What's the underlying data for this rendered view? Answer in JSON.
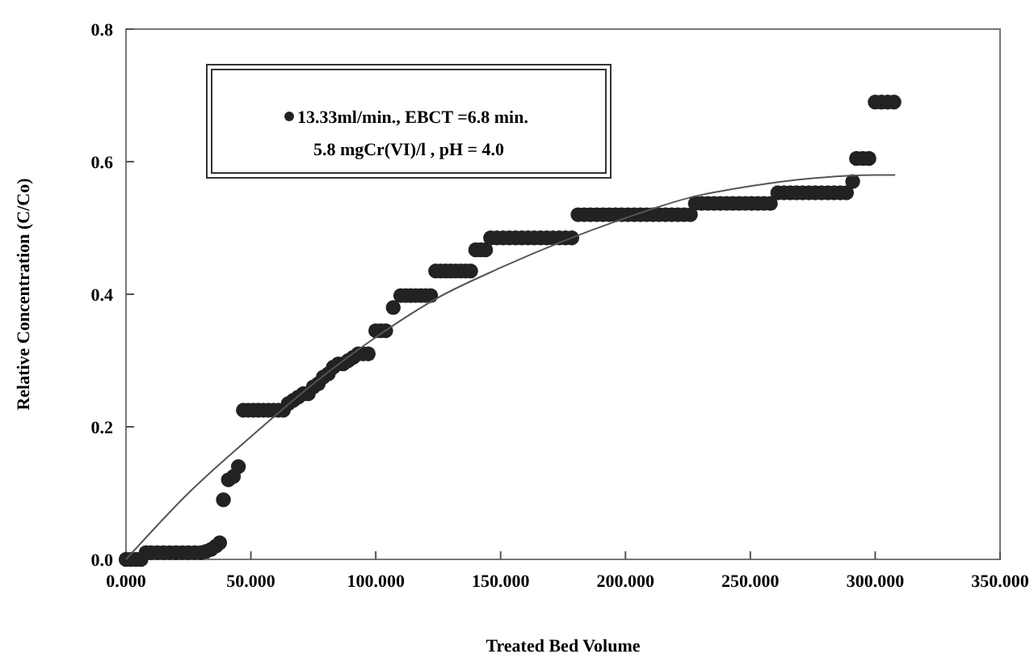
{
  "chart_data": {
    "type": "scatter",
    "xlabel": "Treated Bed Volume",
    "ylabel": "Relative Concentration (C/Co)",
    "xlim": [
      0,
      350
    ],
    "xticks": [
      {
        "value": 0,
        "label": "0.000"
      },
      {
        "value": 50,
        "label": "50.000"
      },
      {
        "value": 100,
        "label": "100.000"
      },
      {
        "value": 150,
        "label": "150.000"
      },
      {
        "value": 200,
        "label": "200.000"
      },
      {
        "value": 250,
        "label": "250.000"
      },
      {
        "value": 300,
        "label": "300.000"
      },
      {
        "value": 350,
        "label": "350.000"
      }
    ],
    "ylim": [
      0,
      0.8
    ],
    "yticks": [
      {
        "value": 0,
        "label": "0.0"
      },
      {
        "value": 0.2,
        "label": "0.2"
      },
      {
        "value": 0.4,
        "label": "0.4"
      },
      {
        "value": 0.6,
        "label": "0.6"
      },
      {
        "value": 0.8,
        "label": "0.8"
      }
    ],
    "grid": false,
    "legend": "top left",
    "marker": "circle",
    "annotations": [
      "5.8 mgCr(VI)/l , pH = 4.0"
    ],
    "series": [
      {
        "name": "13.33ml/min., EBCT =6.8 min.",
        "color": "#222222",
        "x": [
          0,
          2,
          4,
          6,
          8,
          10,
          12.5,
          15,
          17.5,
          20,
          22.5,
          25,
          27.5,
          30,
          32,
          34,
          36,
          37.5,
          39,
          41,
          43,
          45,
          47,
          49,
          51,
          53,
          55,
          57,
          59,
          61,
          63,
          65,
          67,
          69,
          71,
          73,
          75,
          77,
          79,
          81,
          83,
          85,
          87,
          89,
          91,
          93,
          95,
          97,
          100,
          102,
          104,
          107,
          110,
          112,
          114,
          116,
          118,
          120,
          122,
          124,
          126,
          128,
          130,
          132,
          134,
          136,
          138,
          140,
          142,
          144,
          146,
          148.5,
          151,
          153.5,
          156,
          158.5,
          161,
          163.5,
          166,
          168.5,
          171,
          173.5,
          176,
          178.5,
          181,
          183.5,
          186,
          188.5,
          191,
          193.5,
          196,
          198.5,
          201,
          203.5,
          206,
          208.5,
          211,
          213.5,
          216,
          218.5,
          221,
          223.5,
          226,
          228,
          230.5,
          233,
          235.5,
          238,
          240.5,
          243,
          245.5,
          248,
          250.5,
          253,
          255.5,
          258,
          261,
          263.5,
          266,
          268.5,
          271,
          273.5,
          276,
          278.5,
          281,
          283.5,
          286,
          288.5,
          291,
          292.5,
          295,
          297.5,
          300,
          302.5,
          305,
          307.5
        ],
        "values": [
          0,
          0,
          0,
          0,
          0.01,
          0.01,
          0.01,
          0.01,
          0.01,
          0.01,
          0.01,
          0.01,
          0.01,
          0.01,
          0.012,
          0.015,
          0.02,
          0.025,
          0.09,
          0.12,
          0.125,
          0.14,
          0.225,
          0.225,
          0.225,
          0.225,
          0.225,
          0.225,
          0.225,
          0.225,
          0.225,
          0.235,
          0.24,
          0.245,
          0.25,
          0.25,
          0.26,
          0.265,
          0.275,
          0.28,
          0.29,
          0.295,
          0.295,
          0.3,
          0.305,
          0.31,
          0.31,
          0.31,
          0.345,
          0.345,
          0.345,
          0.38,
          0.398,
          0.398,
          0.398,
          0.398,
          0.398,
          0.398,
          0.398,
          0.435,
          0.435,
          0.435,
          0.435,
          0.435,
          0.435,
          0.435,
          0.435,
          0.467,
          0.467,
          0.467,
          0.485,
          0.485,
          0.485,
          0.485,
          0.485,
          0.485,
          0.485,
          0.485,
          0.485,
          0.485,
          0.485,
          0.485,
          0.485,
          0.485,
          0.52,
          0.52,
          0.52,
          0.52,
          0.52,
          0.52,
          0.52,
          0.52,
          0.52,
          0.52,
          0.52,
          0.52,
          0.52,
          0.52,
          0.52,
          0.52,
          0.52,
          0.52,
          0.52,
          0.537,
          0.537,
          0.537,
          0.537,
          0.537,
          0.537,
          0.537,
          0.537,
          0.537,
          0.537,
          0.537,
          0.537,
          0.537,
          0.553,
          0.553,
          0.553,
          0.553,
          0.553,
          0.553,
          0.553,
          0.553,
          0.553,
          0.553,
          0.553,
          0.553,
          0.57,
          0.605,
          0.605,
          0.605,
          0.69,
          0.69,
          0.69,
          0.69
        ]
      },
      {
        "type": "line",
        "color": "#555555",
        "marker": "none",
        "x": [
          0,
          25,
          50,
          75,
          100,
          125,
          150,
          175,
          200,
          225,
          250,
          275,
          300,
          308
        ],
        "values": [
          0,
          0.1,
          0.185,
          0.265,
          0.335,
          0.395,
          0.44,
          0.48,
          0.515,
          0.545,
          0.563,
          0.575,
          0.58,
          0.58
        ]
      }
    ]
  }
}
